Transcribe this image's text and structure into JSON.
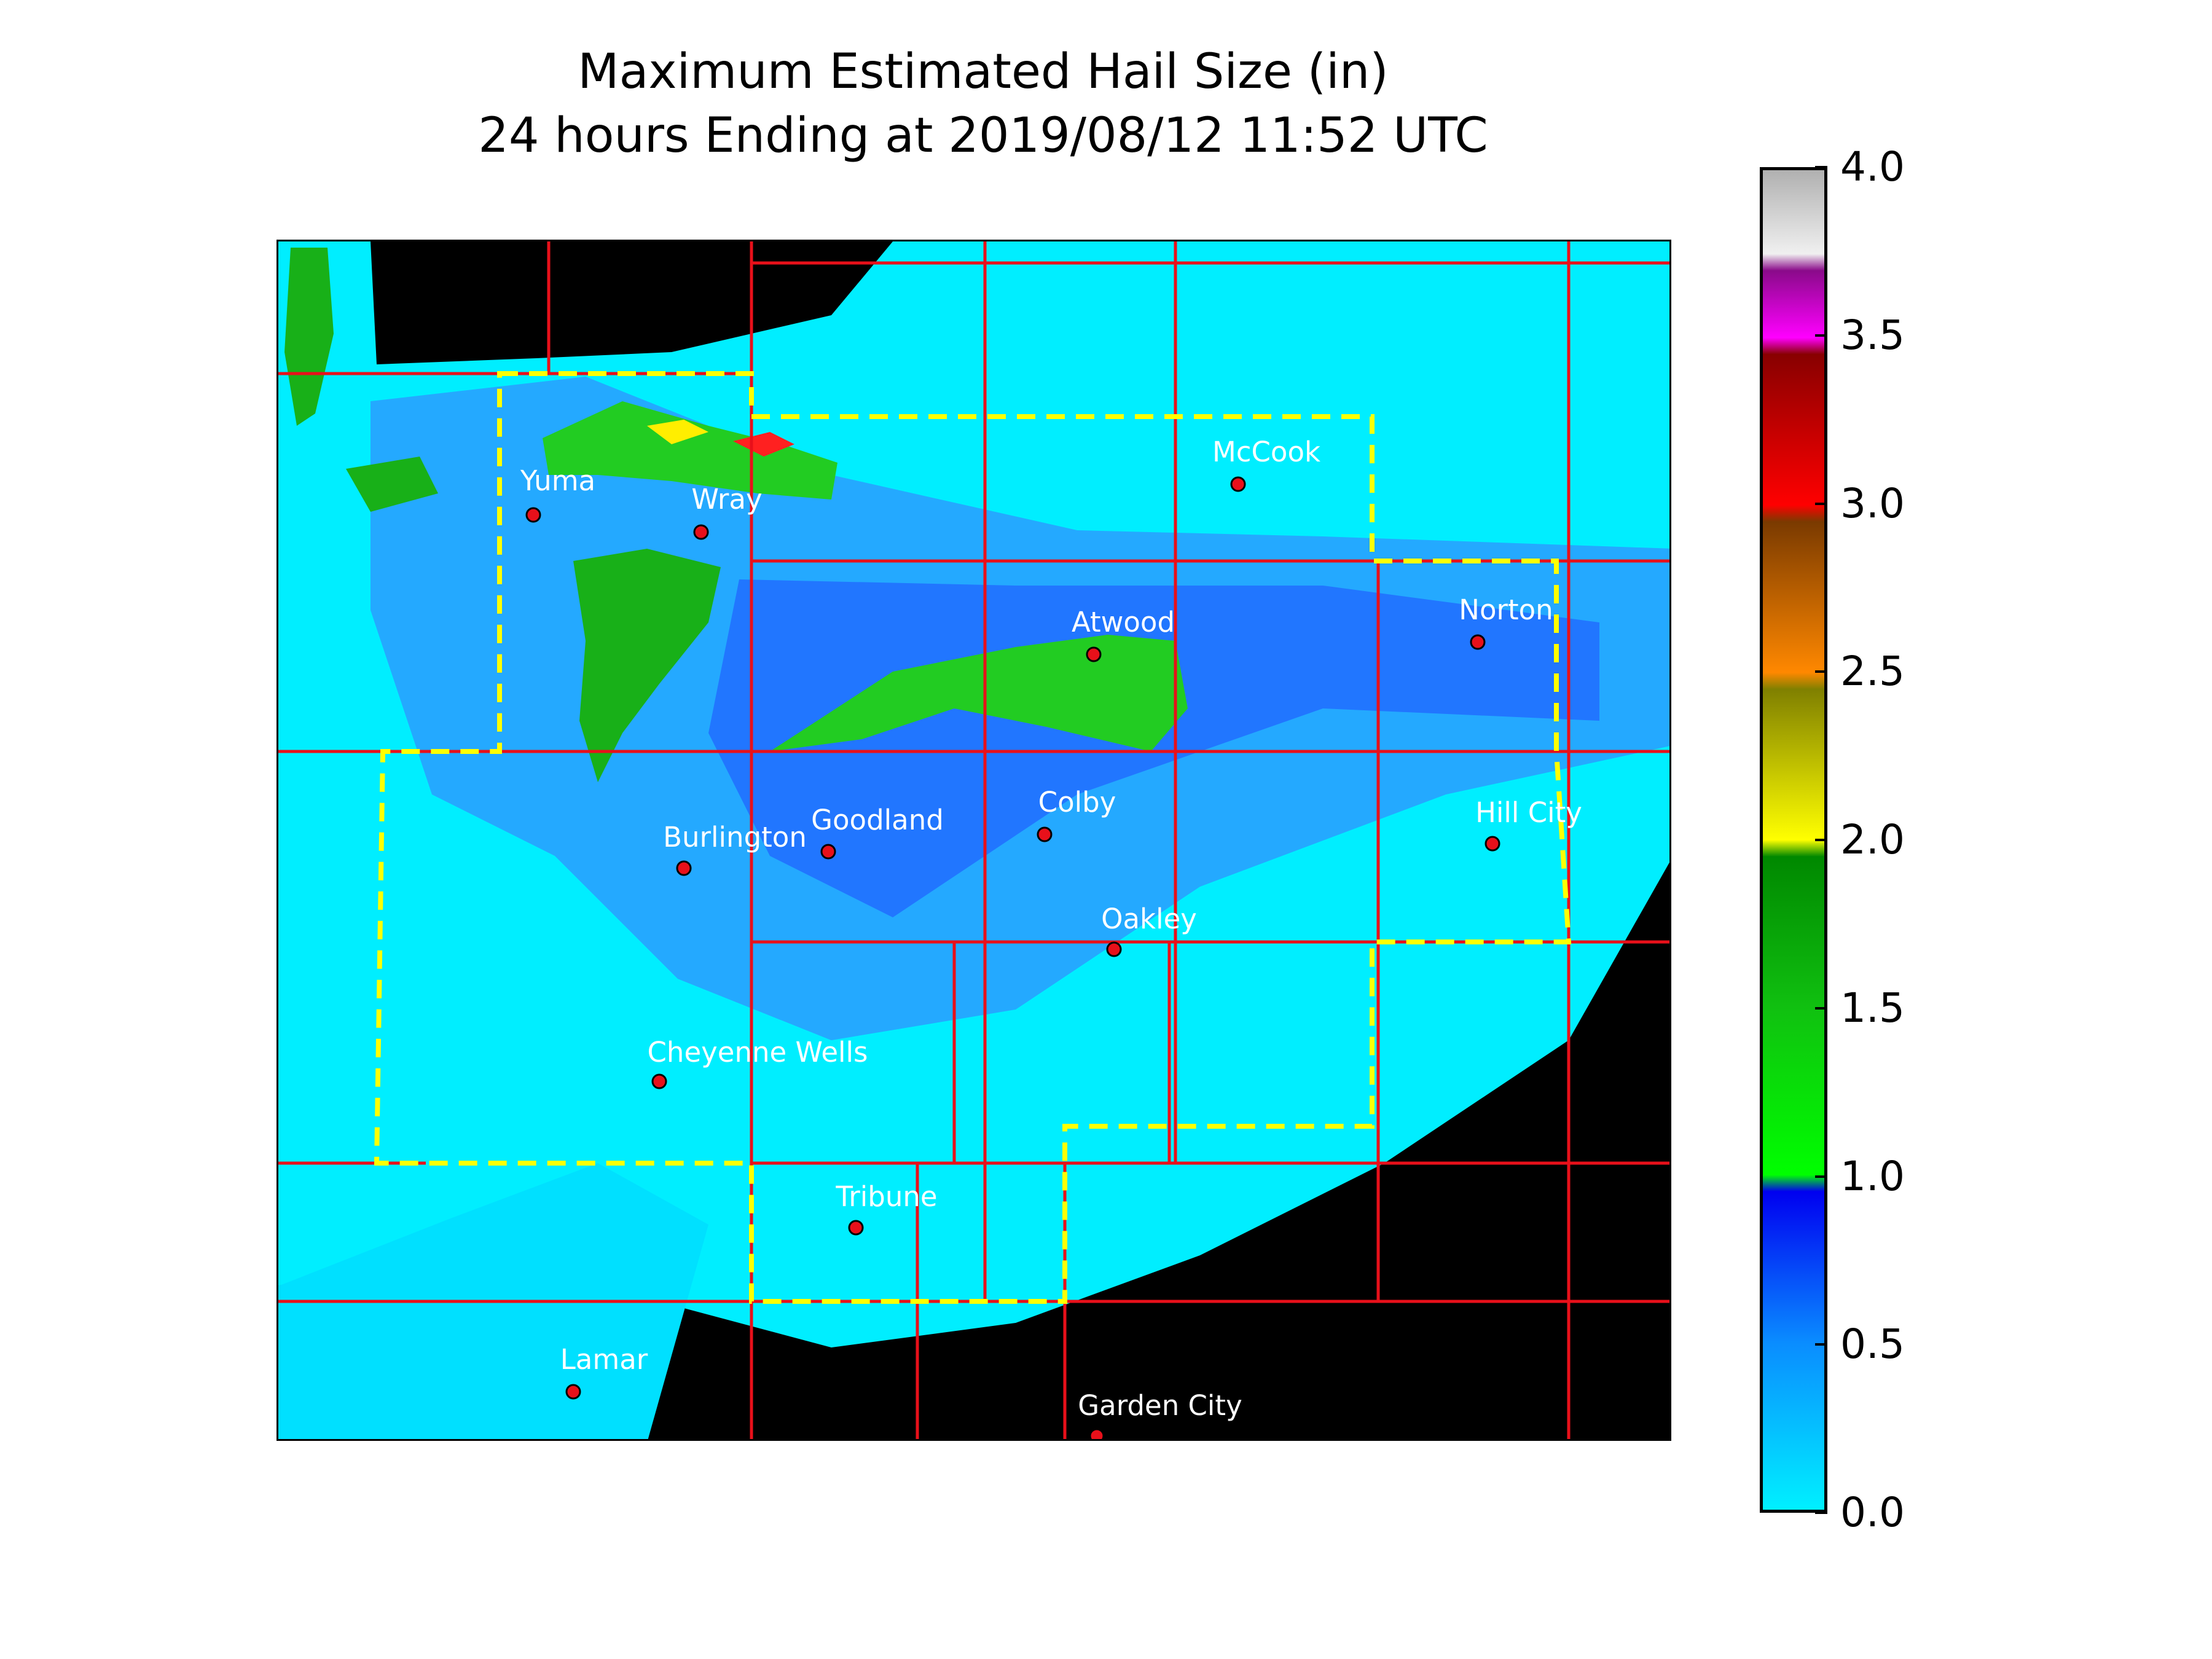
{
  "title": {
    "line1": "Maximum Estimated Hail Size (in)",
    "line2": "24 hours Ending at 2019/08/12 11:52 UTC"
  },
  "map": {
    "background_color": "#000000",
    "county_line_color": "#e8101a",
    "outline_color": "#ffff00",
    "marker_color": "#e8101a",
    "label_color": "#ffffff",
    "cities": [
      {
        "name": "Yuma"
      },
      {
        "name": "Wray"
      },
      {
        "name": "McCook"
      },
      {
        "name": "Atwood"
      },
      {
        "name": "Norton"
      },
      {
        "name": "Burlington"
      },
      {
        "name": "Goodland"
      },
      {
        "name": "Colby"
      },
      {
        "name": "Hill City"
      },
      {
        "name": "Oakley"
      },
      {
        "name": "Cheyenne Wells"
      },
      {
        "name": "Tribune"
      },
      {
        "name": "Lamar"
      },
      {
        "name": "Garden City"
      }
    ]
  },
  "colorbar": {
    "min": 0.0,
    "max": 4.0,
    "ticks": [
      "0.0",
      "0.5",
      "1.0",
      "1.5",
      "2.0",
      "2.5",
      "3.0",
      "3.5",
      "4.0"
    ],
    "stops": [
      {
        "value": 0.0,
        "color": "#00f0ff"
      },
      {
        "value": 0.5,
        "color": "#0a8cff"
      },
      {
        "value": 0.95,
        "color": "#0000f0"
      },
      {
        "value": 1.0,
        "color": "#00ff00"
      },
      {
        "value": 1.5,
        "color": "#10c010"
      },
      {
        "value": 1.95,
        "color": "#008800"
      },
      {
        "value": 2.0,
        "color": "#ffff00"
      },
      {
        "value": 2.45,
        "color": "#808000"
      },
      {
        "value": 2.5,
        "color": "#ff8800"
      },
      {
        "value": 2.95,
        "color": "#7a3a00"
      },
      {
        "value": 3.0,
        "color": "#ff0000"
      },
      {
        "value": 3.45,
        "color": "#880000"
      },
      {
        "value": 3.5,
        "color": "#ff00ff"
      },
      {
        "value": 3.7,
        "color": "#8a0a8a"
      },
      {
        "value": 3.75,
        "color": "#f0f0f0"
      },
      {
        "value": 4.0,
        "color": "#b0b0b0"
      }
    ]
  }
}
